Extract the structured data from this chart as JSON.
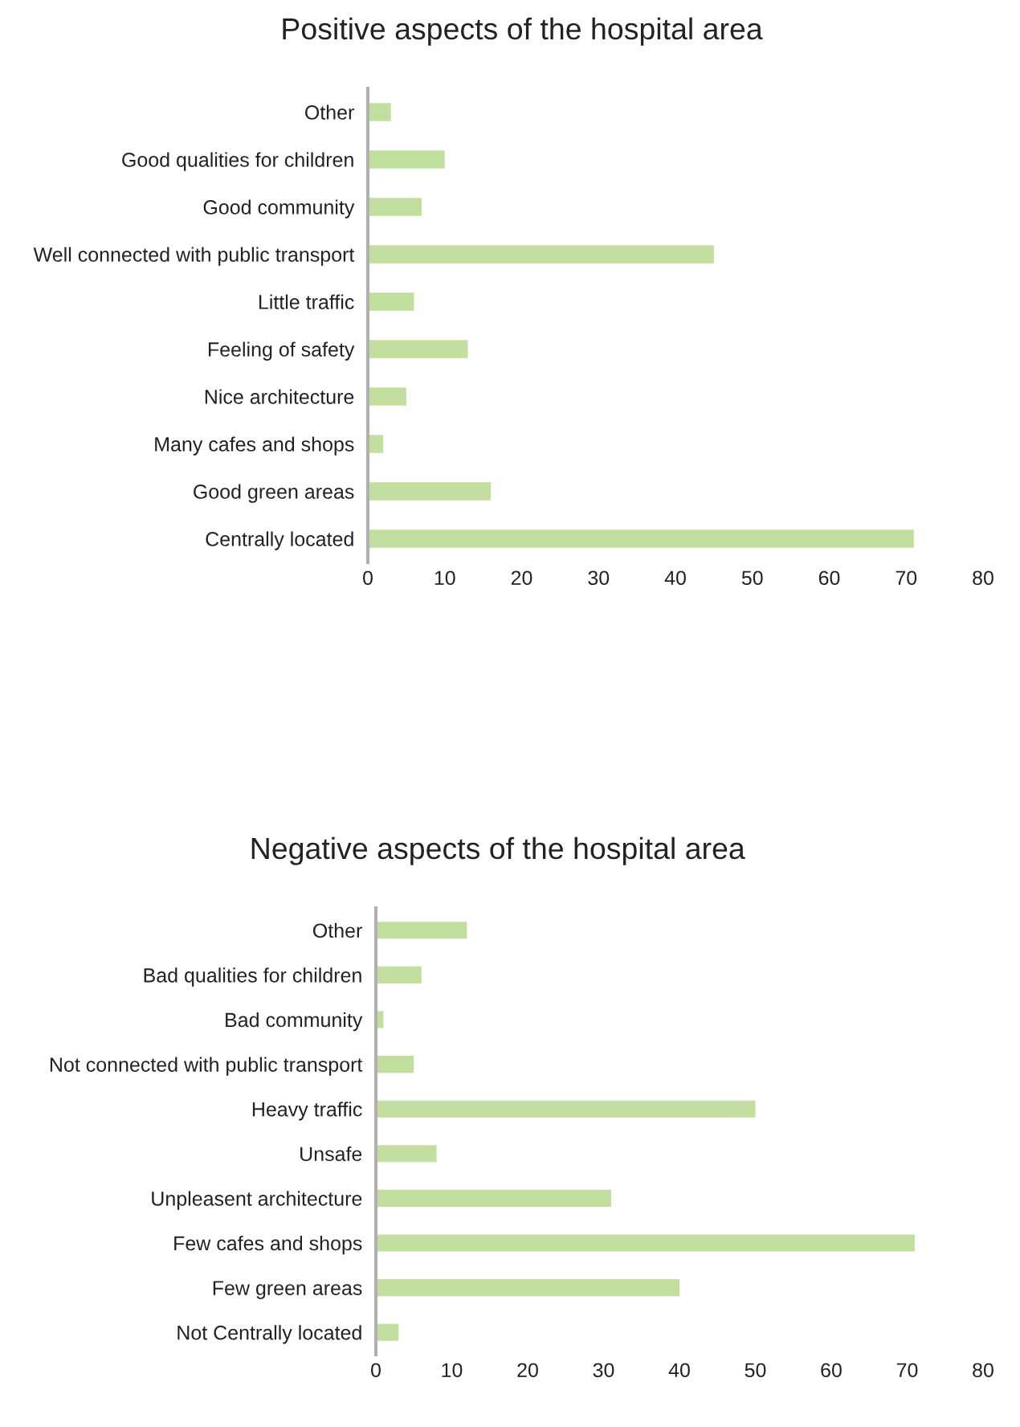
{
  "chart_data": [
    {
      "type": "bar",
      "orientation": "horizontal",
      "title": "Positive aspects of the hospital area",
      "categories": [
        "Other",
        "Good qualities for children",
        "Good community",
        "Well connected with public transport",
        "Little traffic",
        "Feeling of safety",
        "Nice architecture",
        "Many cafes and shops",
        "Good green areas",
        "Centrally located"
      ],
      "values": [
        3,
        10,
        7,
        45,
        6,
        13,
        5,
        2,
        16,
        71
      ],
      "color": "#c3df9f",
      "xlim": [
        0,
        80
      ],
      "xticks": [
        0,
        10,
        20,
        30,
        40,
        50,
        60,
        70,
        80
      ],
      "grid": false,
      "legend": false
    },
    {
      "type": "bar",
      "orientation": "horizontal",
      "title": "Negative aspects of the hospital area",
      "categories": [
        "Other",
        "Bad qualities for children",
        "Bad community",
        "Not connected with public transport",
        "Heavy traffic",
        "Unsafe",
        "Unpleasent architecture",
        "Few cafes and shops",
        "Few green areas",
        "Not Centrally located"
      ],
      "values": [
        12,
        6,
        1,
        5,
        50,
        8,
        31,
        71,
        40,
        3
      ],
      "color": "#c3df9f",
      "xlim": [
        0,
        80
      ],
      "xticks": [
        0,
        10,
        20,
        30,
        40,
        50,
        60,
        70,
        80
      ],
      "grid": false,
      "legend": false
    }
  ]
}
